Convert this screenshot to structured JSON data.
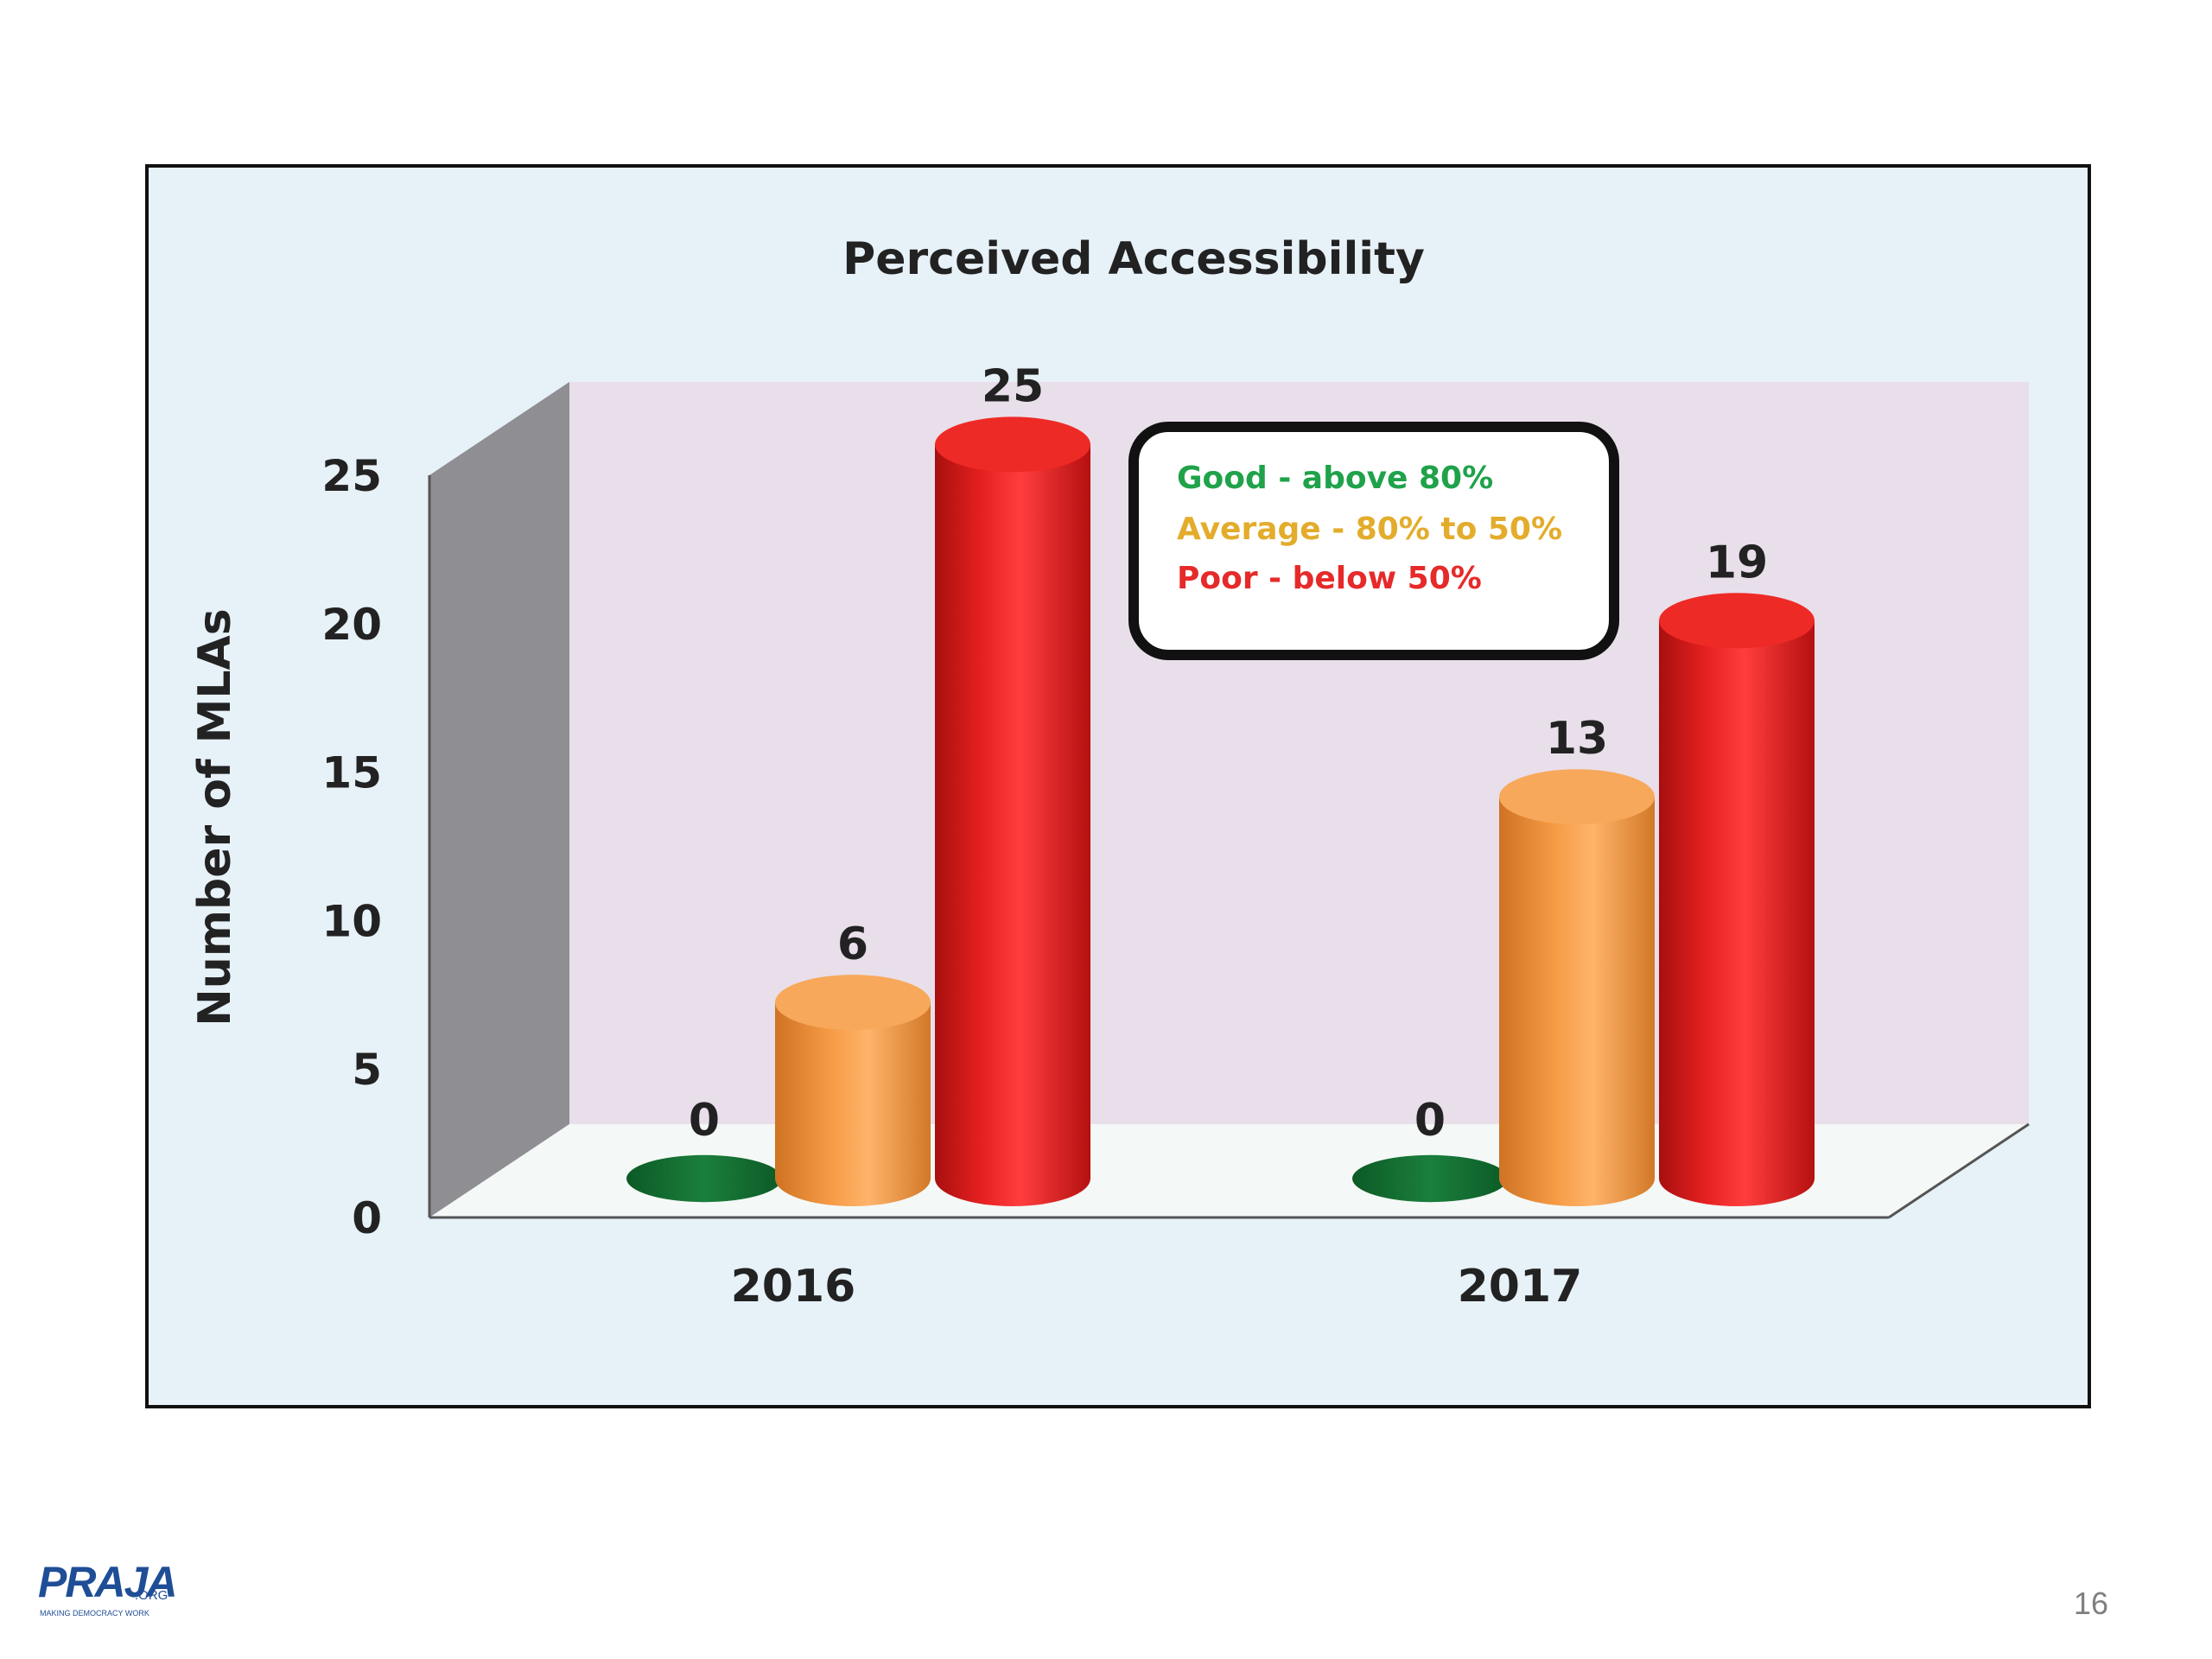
{
  "chart_data": {
    "type": "bar",
    "title": "Perceived Accessibility",
    "ylabel": "Number of MLAs",
    "xlabel": "",
    "categories": [
      "2016",
      "2017"
    ],
    "series": [
      {
        "name": "Good - above 80%",
        "values": [
          0,
          0
        ],
        "color": "#1a7f3c"
      },
      {
        "name": "Average - 80% to 50%",
        "values": [
          6,
          13
        ],
        "color": "#f59a44"
      },
      {
        "name": "Poor - below 50%",
        "values": [
          25,
          19
        ],
        "color": "#e8211e"
      }
    ],
    "data_labels": [
      [
        "0",
        "6",
        "25"
      ],
      [
        "0",
        "13",
        "19"
      ]
    ],
    "ylim": [
      0,
      25
    ],
    "yticks": [
      "0",
      "5",
      "10",
      "15",
      "20",
      "25"
    ],
    "legend_position": "top-center",
    "grid": false
  },
  "colors": {
    "back_wall": "#e8dfea",
    "side_wall": "#8e8e93",
    "floor": "#f4f8f6",
    "legend_good": "#1fa24a",
    "legend_average": "#e3ac2b",
    "legend_poor": "#e62a2a"
  },
  "logo": {
    "text": "PRAJA",
    "org": ".ORG",
    "tagline": "MAKING DEMOCRACY WORK"
  },
  "page_number": "16"
}
